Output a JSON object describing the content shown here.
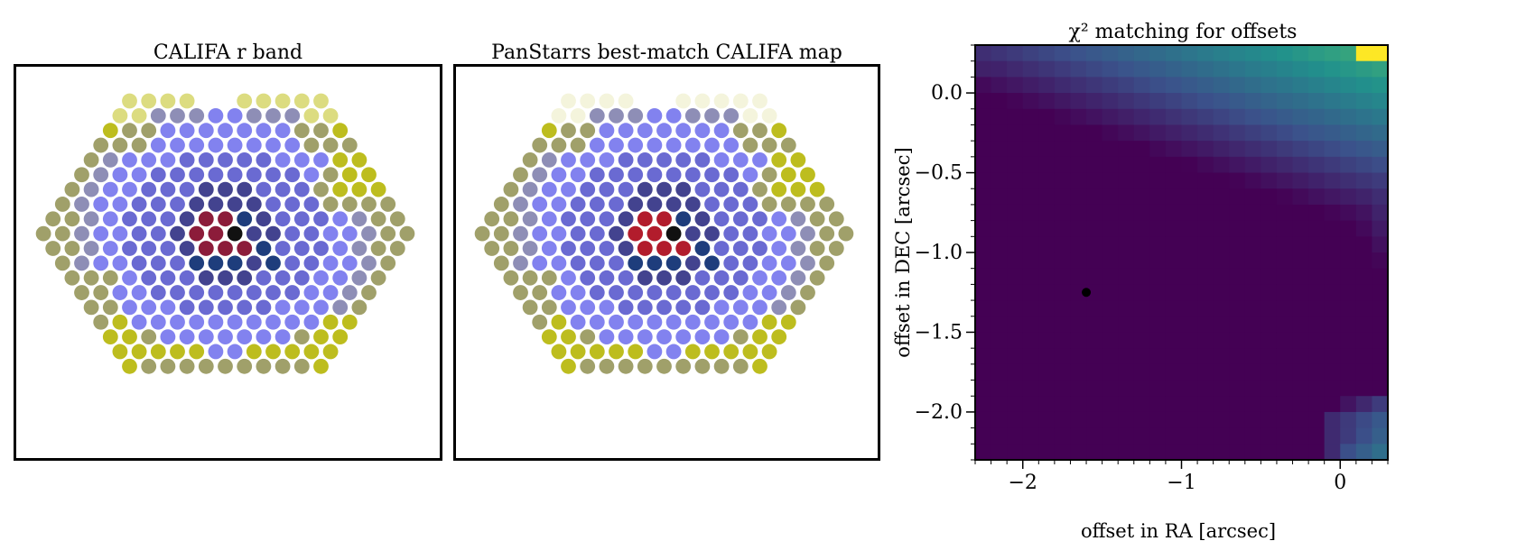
{
  "chart_data": [
    {
      "type": "scatter",
      "title": "CALIFA r band",
      "hex_rows": [
        {
          "y": 0,
          "x": [
            -5,
            -4,
            -3,
            -2,
            -1,
            0,
            1,
            2,
            3,
            4,
            5
          ]
        },
        {
          "y": 1,
          "x": [
            -5.5,
            -4.5,
            -3.5,
            -2.5,
            -1.5,
            -0.5,
            0.5,
            1.5,
            2.5,
            3.5,
            4.5,
            5.5
          ]
        },
        {
          "y": 2,
          "x": [
            -6,
            -5,
            -4,
            -3,
            -2,
            -1,
            0,
            1,
            2,
            3,
            4,
            5,
            6
          ]
        },
        {
          "y": 3,
          "x": [
            -6.5,
            -5.5,
            -4.5,
            -3.5,
            -2.5,
            -1.5,
            -0.5,
            0.5,
            1.5,
            2.5,
            3.5,
            4.5,
            5.5,
            6.5
          ]
        },
        {
          "y": 4,
          "x": [
            -7,
            -6,
            -5,
            -4,
            -3,
            -2,
            -1,
            0,
            1,
            2,
            3,
            4,
            5,
            6,
            7
          ]
        },
        {
          "y": 5,
          "x": [
            -7.5,
            -6.5,
            -5.5,
            -4.5,
            -3.5,
            -2.5,
            -1.5,
            -0.5,
            0.5,
            1.5,
            2.5,
            3.5,
            4.5,
            5.5,
            6.5,
            7.5
          ]
        },
        {
          "y": 6,
          "x": [
            -8,
            -7,
            -6,
            -5,
            -4,
            -3,
            -2,
            -1,
            0,
            1,
            2,
            3,
            4,
            5,
            6,
            7,
            8
          ]
        },
        {
          "y": 7,
          "x": [
            -8.5,
            -7.5,
            -6.5,
            -5.5,
            -4.5,
            -3.5,
            -2.5,
            -1.5,
            -0.5,
            0.5,
            1.5,
            2.5,
            3.5,
            4.5,
            5.5,
            6.5,
            7.5,
            8.5
          ]
        },
        {
          "y": 8,
          "x": [
            -9,
            -8,
            -7,
            -6,
            -5,
            -4,
            -3,
            -2,
            -1,
            0,
            1,
            2,
            3,
            4,
            5,
            6,
            7,
            8,
            9
          ]
        },
        {
          "y": 9,
          "x": [
            -9.5,
            -8.5,
            -7.5,
            -6.5,
            -5.5,
            -4.5,
            -3.5,
            -2.5,
            -1.5,
            -0.5,
            0.5,
            1.5,
            2.5,
            3.5,
            4.5,
            5.5,
            6.5,
            7.5,
            8.5,
            9.5
          ]
        },
        {
          "y": 10,
          "x": [
            -9,
            -8,
            -7,
            -6,
            -5,
            -4,
            -3,
            -2,
            -1,
            0,
            1,
            2,
            3,
            4,
            5,
            6,
            7,
            8,
            9
          ]
        },
        {
          "y": 11,
          "x": [
            -8.5,
            -7.5,
            -6.5,
            -5.5,
            -4.5,
            -3.5,
            -2.5,
            -1.5,
            -0.5,
            0.5,
            1.5,
            2.5,
            3.5,
            4.5,
            5.5,
            6.5,
            7.5,
            8.5
          ]
        },
        {
          "y": 12,
          "x": [
            -8,
            -7,
            -6,
            -5,
            -4,
            -3,
            -2,
            -1,
            0,
            1,
            2,
            3,
            4,
            5,
            6,
            7,
            8
          ]
        },
        {
          "y": 13,
          "x": [
            -7.5,
            -6.5,
            -5.5,
            -4.5,
            -3.5,
            -2.5,
            -1.5,
            -0.5,
            0.5,
            1.5,
            2.5,
            3.5,
            4.5,
            5.5,
            6.5,
            7.5
          ]
        },
        {
          "y": 14,
          "x": [
            -7,
            -6,
            -5,
            -4,
            -3,
            -2,
            -1,
            0,
            1,
            2,
            3,
            4,
            5,
            6,
            7
          ]
        },
        {
          "y": 15,
          "x": [
            -6.5,
            -5.5,
            -4.5,
            -3.5,
            -2.5,
            -1.5,
            -0.5,
            0.5,
            1.5,
            2.5,
            3.5,
            4.5,
            5.5,
            6.5
          ]
        },
        {
          "y": 16,
          "x": [
            -6,
            -5,
            -4,
            -3,
            -2,
            -1,
            0,
            1,
            2,
            3,
            4,
            5,
            6
          ]
        },
        {
          "y": 17,
          "x": [
            -5.5,
            -4.5,
            -3.5,
            -2.5,
            -1.5,
            -0.5,
            0.5,
            1.5,
            2.5,
            3.5,
            4.5,
            5.5
          ]
        },
        {
          "y": 18,
          "x": [
            -5,
            -4,
            -3,
            -2,
            -1,
            0,
            1,
            2,
            3,
            4,
            5
          ]
        }
      ],
      "missing_spaxels": [
        [
          4,
          0
        ],
        [
          5,
          0
        ]
      ],
      "colormap": [
        "#111111",
        "#8c1c3a",
        "#1e3d7c",
        "#43438f",
        "#6a6ad2",
        "#8282ef",
        "#8e8eb6",
        "#a0a06a",
        "#bdbd1e",
        "#dcdc80",
        "#f4f4dc"
      ]
    },
    {
      "type": "scatter",
      "title": "PanStarrs best-match CALIFA map",
      "hex_rows_same_as_panel": 0,
      "missing_spaxels": [
        [
          4,
          0
        ],
        [
          5,
          0
        ]
      ],
      "colormap": [
        "#111111",
        "#b21c2c",
        "#1e3d7c",
        "#43438f",
        "#6a6ad2",
        "#8282ef",
        "#8e8eb6",
        "#a0a06a",
        "#bdbd1e",
        "#dcdc80",
        "#f4f4dc"
      ]
    },
    {
      "type": "heatmap",
      "title": "χ² matching for offsets",
      "xlabel": "offset in RA [arcsec]",
      "ylabel": "offset in DEC [arcsec]",
      "xlim": [
        -2.3,
        0.3
      ],
      "ylim": [
        -2.3,
        0.3
      ],
      "cell_size": 0.1,
      "x_ticks": [
        -2,
        -1,
        0
      ],
      "x_tick_labels": [
        "−2",
        "−1",
        "0"
      ],
      "y_ticks": [
        0,
        -0.5,
        -1,
        -1.5,
        -2
      ],
      "y_tick_labels": [
        "0.0",
        "−0.5",
        "−1.0",
        "−1.5",
        "−2.0"
      ],
      "best_fit_marker": {
        "x": -1.6,
        "y": -1.25
      },
      "colormap": [
        "#440154",
        "#3b528b",
        "#21918c",
        "#5ec962",
        "#fde725"
      ]
    }
  ]
}
